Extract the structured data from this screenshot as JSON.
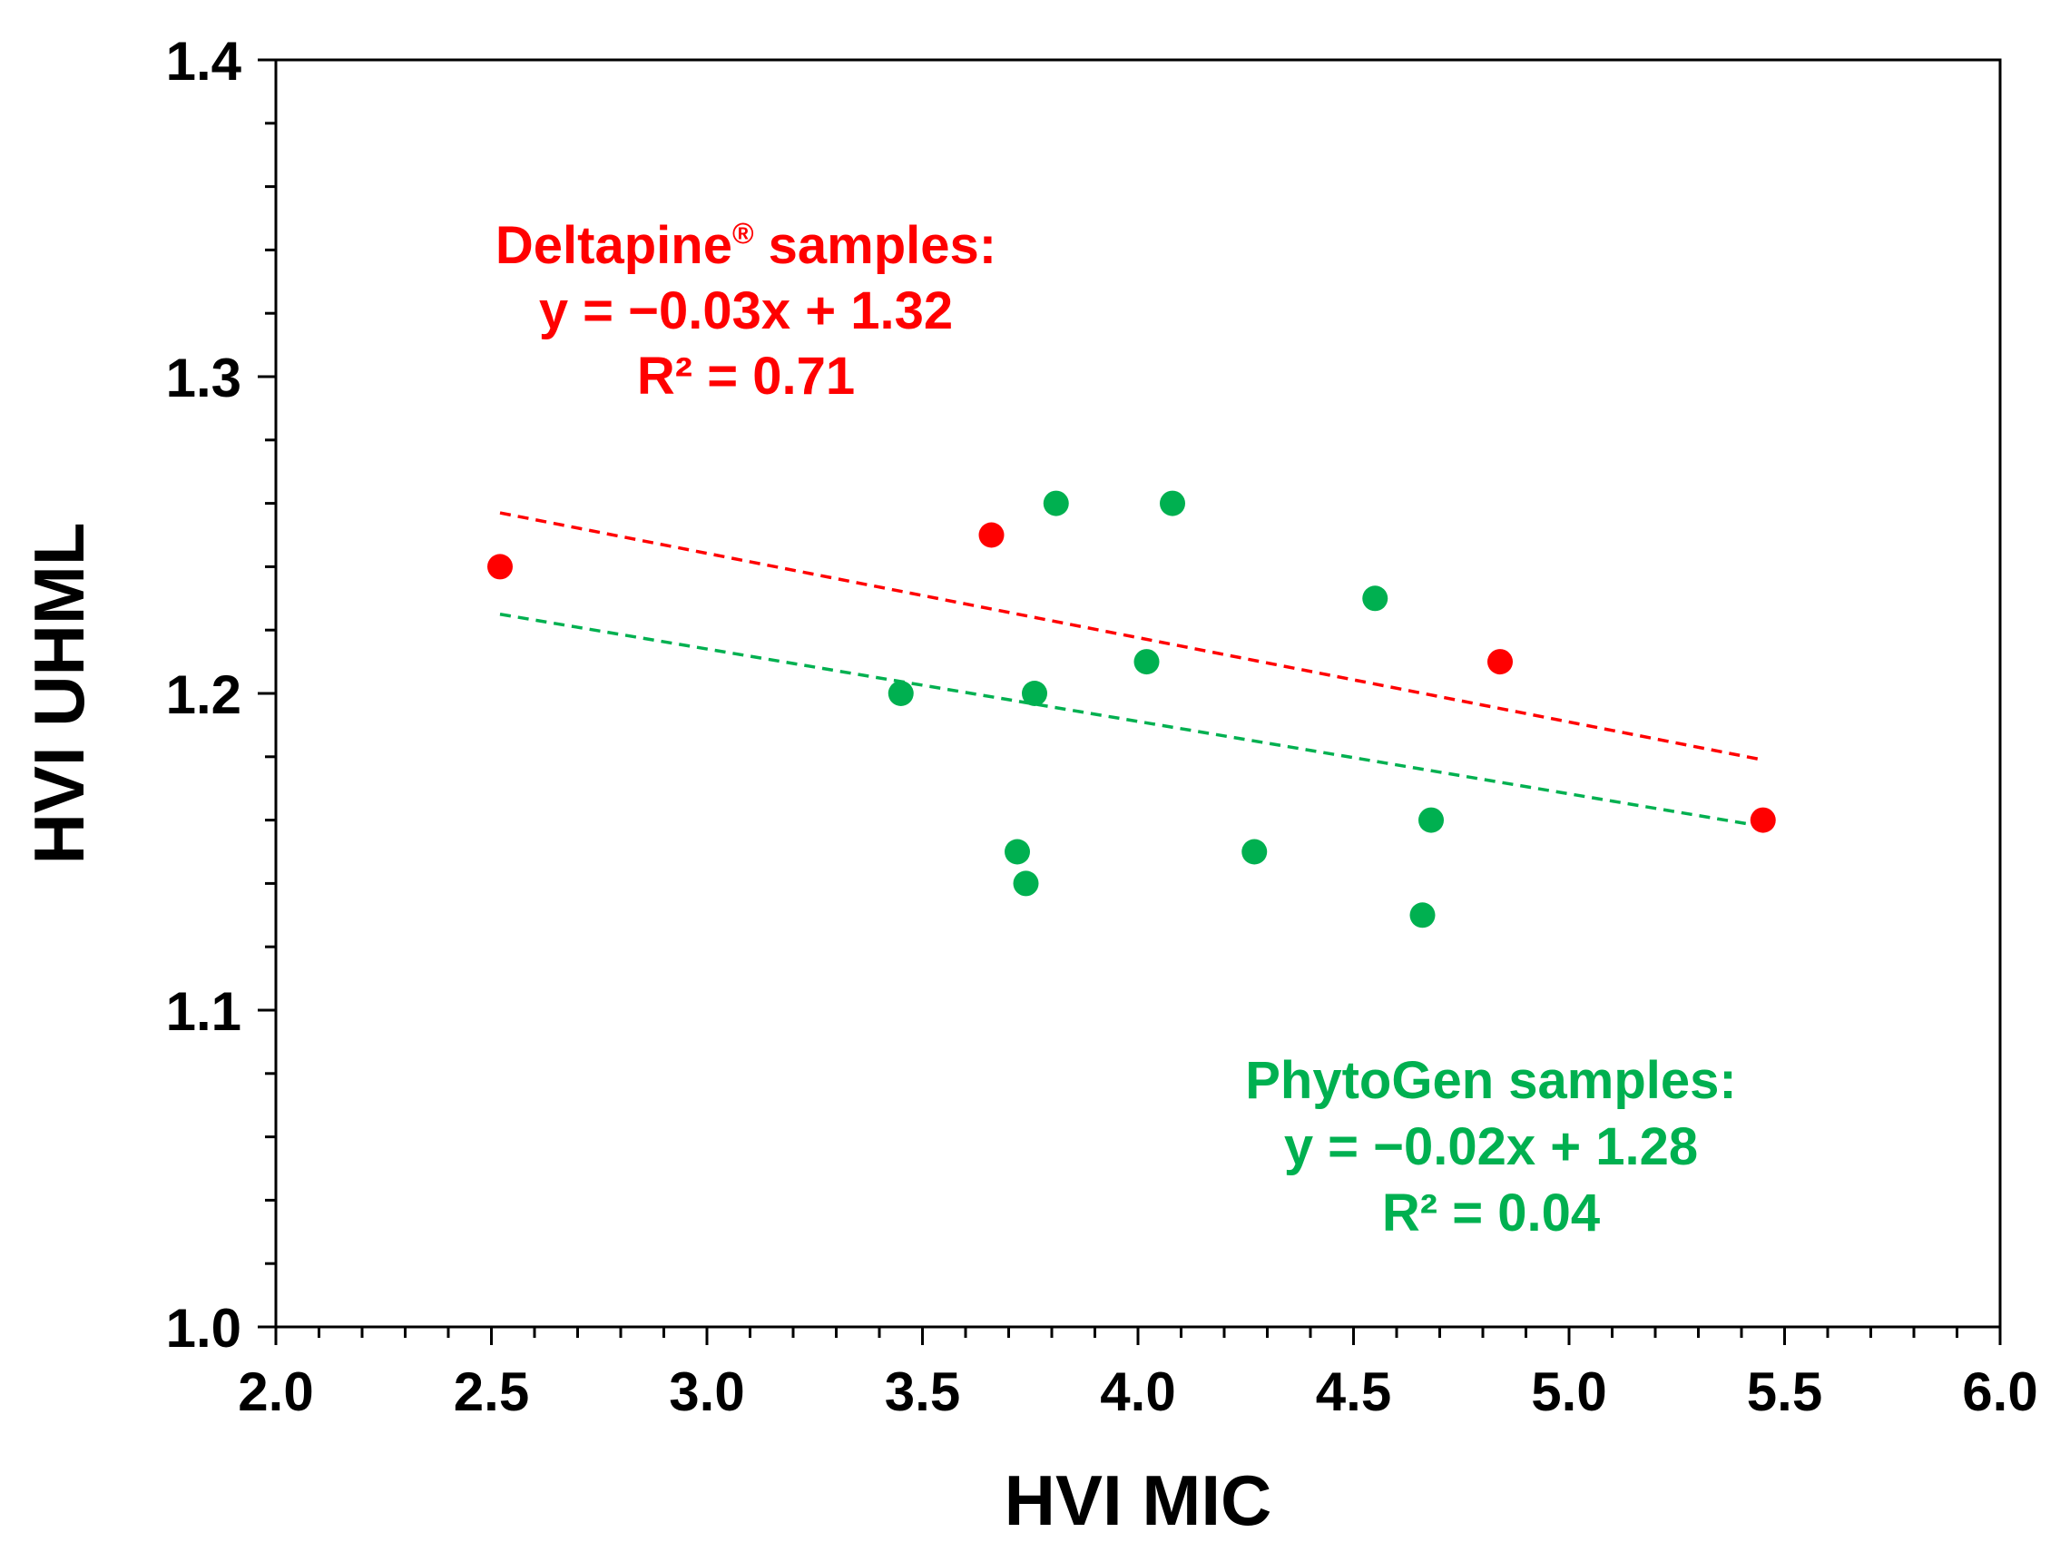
{
  "chart_data": {
    "type": "scatter",
    "xlabel": "HVI MIC",
    "ylabel": "HVI UHML",
    "xlim": [
      2.0,
      6.0
    ],
    "ylim": [
      1.0,
      1.4
    ],
    "x_ticks": [
      "2.0",
      "2.5",
      "3.0",
      "3.5",
      "4.0",
      "4.5",
      "5.0",
      "5.5",
      "6.0"
    ],
    "y_ticks": [
      "1.0",
      "1.1",
      "1.2",
      "1.3",
      "1.4"
    ],
    "x_minor_step": 0.1,
    "y_minor_step": 0.02,
    "series": [
      {
        "name": "Deltapine samples",
        "color": "#ff0000",
        "points": [
          {
            "x": 2.52,
            "y": 1.24
          },
          {
            "x": 3.66,
            "y": 1.25
          },
          {
            "x": 4.84,
            "y": 1.21
          },
          {
            "x": 5.45,
            "y": 1.16
          }
        ],
        "trend": {
          "x_start": 2.52,
          "y_start": 1.257,
          "x_end": 5.45,
          "y_end": 1.179
        },
        "annotation": {
          "title_pre": "Deltapine",
          "title_sup": "®",
          "title_post": " samples:",
          "equation": "y = −0.03x + 1.32",
          "r2": "R² = 0.71"
        }
      },
      {
        "name": "PhytoGen samples",
        "color": "#00b050",
        "points": [
          {
            "x": 3.45,
            "y": 1.2
          },
          {
            "x": 3.72,
            "y": 1.15
          },
          {
            "x": 3.74,
            "y": 1.14
          },
          {
            "x": 3.76,
            "y": 1.2
          },
          {
            "x": 3.81,
            "y": 1.26
          },
          {
            "x": 4.02,
            "y": 1.21
          },
          {
            "x": 4.08,
            "y": 1.26
          },
          {
            "x": 4.27,
            "y": 1.15
          },
          {
            "x": 4.55,
            "y": 1.23
          },
          {
            "x": 4.66,
            "y": 1.13
          },
          {
            "x": 4.68,
            "y": 1.16
          }
        ],
        "trend": {
          "x_start": 2.52,
          "y_start": 1.225,
          "x_end": 5.45,
          "y_end": 1.158
        },
        "annotation": {
          "title": "PhytoGen samples:",
          "equation": "y = −0.02x + 1.28",
          "r2": "R² = 0.04"
        }
      }
    ]
  }
}
